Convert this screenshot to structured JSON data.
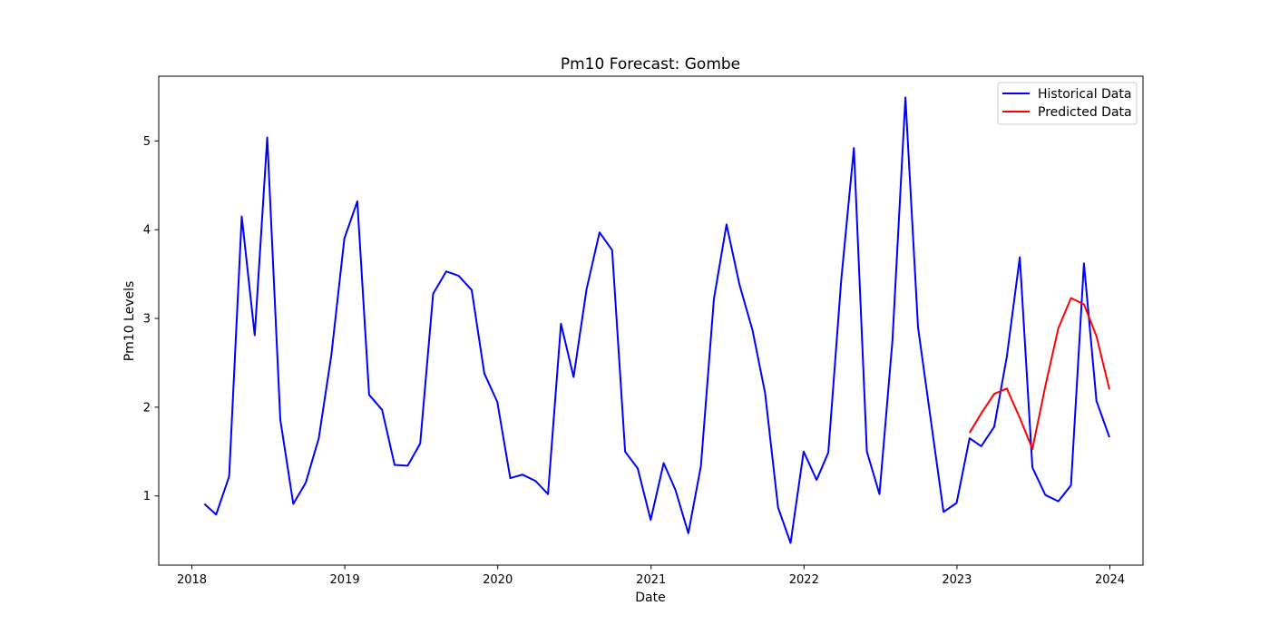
{
  "chart_data": {
    "type": "line",
    "title": "Pm10 Forecast: Gombe",
    "xlabel": "Date",
    "ylabel": "Pm10 Levels",
    "x_ticks": [
      "2018",
      "2019",
      "2020",
      "2021",
      "2022",
      "2023",
      "2024"
    ],
    "y_ticks": [
      "1",
      "2",
      "3",
      "4",
      "5"
    ],
    "xlim": [
      "2017-10-14",
      "2024-03-20"
    ],
    "ylim": [
      0.22,
      5.73
    ],
    "grid": false,
    "legend_position": "upper right",
    "series": [
      {
        "name": "Historical Data",
        "color": "#0000ff",
        "points": [
          [
            "2018-01-31",
            0.91
          ],
          [
            "2018-02-28",
            0.79
          ],
          [
            "2018-03-31",
            1.22
          ],
          [
            "2018-04-30",
            4.15
          ],
          [
            "2018-05-31",
            2.81
          ],
          [
            "2018-06-30",
            5.04
          ],
          [
            "2018-07-31",
            1.86
          ],
          [
            "2018-08-31",
            0.91
          ],
          [
            "2018-09-30",
            1.15
          ],
          [
            "2018-10-31",
            1.65
          ],
          [
            "2018-11-30",
            2.59
          ],
          [
            "2018-12-31",
            3.9
          ],
          [
            "2019-01-31",
            4.32
          ],
          [
            "2019-02-28",
            2.14
          ],
          [
            "2019-03-31",
            1.97
          ],
          [
            "2019-04-30",
            1.35
          ],
          [
            "2019-05-31",
            1.34
          ],
          [
            "2019-06-30",
            1.59
          ],
          [
            "2019-07-31",
            3.28
          ],
          [
            "2019-08-31",
            3.53
          ],
          [
            "2019-09-30",
            3.48
          ],
          [
            "2019-10-31",
            3.32
          ],
          [
            "2019-11-30",
            2.38
          ],
          [
            "2019-12-31",
            2.06
          ],
          [
            "2020-01-31",
            1.2
          ],
          [
            "2020-02-29",
            1.24
          ],
          [
            "2020-03-31",
            1.17
          ],
          [
            "2020-04-30",
            1.02
          ],
          [
            "2020-05-31",
            2.94
          ],
          [
            "2020-06-30",
            2.34
          ],
          [
            "2020-07-31",
            3.33
          ],
          [
            "2020-08-31",
            3.97
          ],
          [
            "2020-09-30",
            3.77
          ],
          [
            "2020-10-31",
            1.5
          ],
          [
            "2020-11-30",
            1.31
          ],
          [
            "2020-12-31",
            0.73
          ],
          [
            "2021-01-31",
            1.37
          ],
          [
            "2021-02-28",
            1.07
          ],
          [
            "2021-03-31",
            0.58
          ],
          [
            "2021-04-30",
            1.34
          ],
          [
            "2021-05-31",
            3.22
          ],
          [
            "2021-06-30",
            4.06
          ],
          [
            "2021-07-31",
            3.38
          ],
          [
            "2021-08-31",
            2.87
          ],
          [
            "2021-09-30",
            2.16
          ],
          [
            "2021-10-31",
            0.87
          ],
          [
            "2021-11-30",
            0.47
          ],
          [
            "2021-12-31",
            1.5
          ],
          [
            "2022-01-31",
            1.18
          ],
          [
            "2022-02-28",
            1.49
          ],
          [
            "2022-03-31",
            3.44
          ],
          [
            "2022-04-30",
            4.92
          ],
          [
            "2022-05-31",
            1.5
          ],
          [
            "2022-06-30",
            1.02
          ],
          [
            "2022-07-31",
            2.75
          ],
          [
            "2022-08-31",
            5.49
          ],
          [
            "2022-09-30",
            2.9
          ],
          [
            "2022-10-31",
            1.84
          ],
          [
            "2022-11-30",
            0.82
          ],
          [
            "2022-12-31",
            0.92
          ],
          [
            "2023-01-31",
            1.65
          ],
          [
            "2023-02-28",
            1.56
          ],
          [
            "2023-03-31",
            1.78
          ],
          [
            "2023-04-30",
            2.57
          ],
          [
            "2023-05-31",
            3.69
          ],
          [
            "2023-06-30",
            1.32
          ],
          [
            "2023-07-31",
            1.01
          ],
          [
            "2023-08-31",
            0.94
          ],
          [
            "2023-09-30",
            1.12
          ],
          [
            "2023-10-31",
            3.62
          ],
          [
            "2023-11-30",
            2.07
          ],
          [
            "2023-12-31",
            1.66
          ]
        ]
      },
      {
        "name": "Predicted Data",
        "color": "#ff0000",
        "points": [
          [
            "2023-01-31",
            1.71
          ],
          [
            "2023-02-28",
            1.93
          ],
          [
            "2023-03-31",
            2.15
          ],
          [
            "2023-04-30",
            2.21
          ],
          [
            "2023-05-31",
            1.88
          ],
          [
            "2023-06-30",
            1.53
          ],
          [
            "2023-07-31",
            2.24
          ],
          [
            "2023-08-31",
            2.89
          ],
          [
            "2023-09-30",
            3.23
          ],
          [
            "2023-10-31",
            3.16
          ],
          [
            "2023-11-30",
            2.8
          ],
          [
            "2023-12-31",
            2.2
          ]
        ]
      }
    ]
  }
}
